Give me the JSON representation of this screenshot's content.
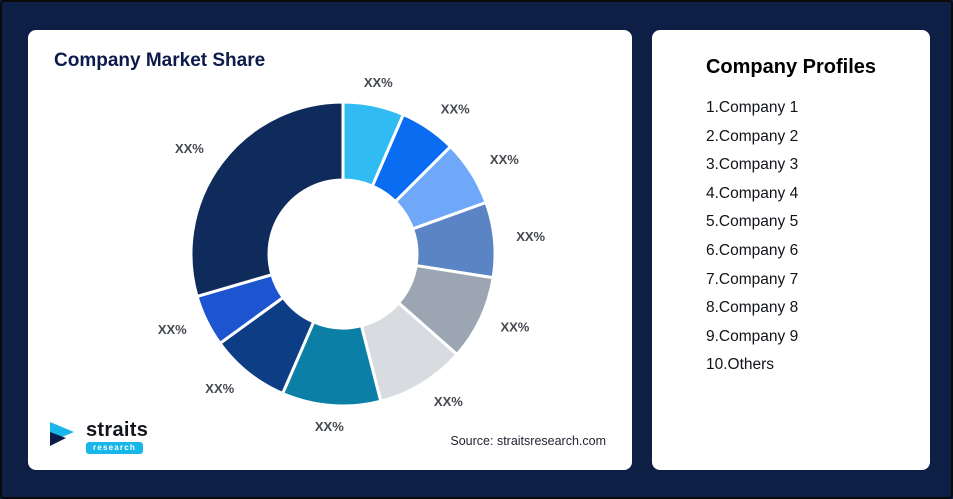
{
  "page": {
    "background_color": "#0E1F45",
    "card_color": "#FFFFFF"
  },
  "chart_card": {
    "title": "Company Market Share",
    "source": "Source: straitsresearch.com",
    "logo": {
      "brand": "straits",
      "sub": "research",
      "accent_color": "#19b6e9",
      "dark_color": "#0d1b4c"
    }
  },
  "profiles_card": {
    "title": "Company Profiles",
    "items": [
      "1.Company 1",
      "2.Company 2",
      "3.Company 3",
      "4.Company 4",
      "5.Company 5",
      "6.Company 6",
      "7.Company 7",
      "8.Company 8",
      "9.Company 9",
      "10.Others"
    ]
  },
  "chart_data": {
    "type": "pie",
    "donut": true,
    "title": "Company Market Share",
    "start_angle_deg": 0,
    "direction": "clockwise-from-top",
    "legend_position": "none",
    "labels": [
      "Company 1",
      "Company 2",
      "Company 3",
      "Company 4",
      "Company 5",
      "Company 6",
      "Company 7",
      "Company 8",
      "Company 9",
      "Others"
    ],
    "display_labels": [
      "XX%",
      "XX%",
      "XX%",
      "XX%",
      "XX%",
      "XX%",
      "XX%",
      "XX%",
      "XX%",
      "XX%"
    ],
    "values_estimated_pct": [
      6.5,
      6,
      7,
      8,
      9,
      9.5,
      10.5,
      8.5,
      5.5,
      29.5
    ],
    "colors": [
      "#30BCF2",
      "#0A6CF1",
      "#6FA8F8",
      "#5B84C4",
      "#9BA6B2",
      "#D8DCE1",
      "#0C7FA6",
      "#0D3D85",
      "#1D55D0",
      "#0E2B5C"
    ],
    "label_color": "#44484f",
    "segment_gap_color": "#FFFFFF"
  }
}
